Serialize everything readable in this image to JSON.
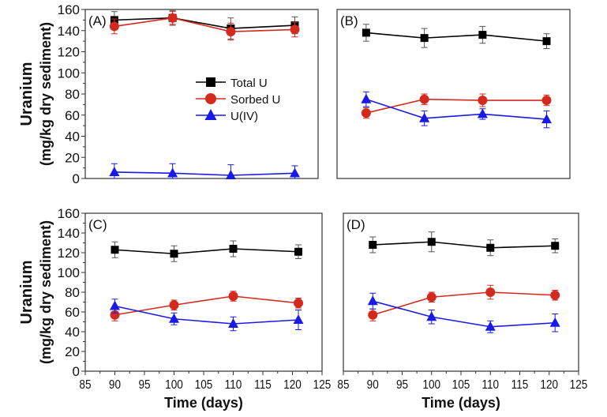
{
  "chart_data": [
    {
      "type": "line",
      "panel_label": "(A)",
      "x": [
        90,
        100,
        110,
        121
      ],
      "xlim": [
        85,
        125
      ],
      "ylim": [
        0,
        160
      ],
      "xticks": [],
      "yticks": [
        "0",
        "20",
        "40",
        "60",
        "80",
        "100",
        "120",
        "140",
        "160"
      ],
      "ylabel_line1": "Uranium",
      "ylabel_line2": "(mg/kg dry sediment)",
      "xlabel": "",
      "legend": {
        "placement": "center-right"
      },
      "series": [
        {
          "name": "Total U",
          "color": "#000000",
          "marker": "square",
          "values": [
            150,
            152,
            142,
            145
          ],
          "error": [
            8,
            7,
            10,
            8
          ]
        },
        {
          "name": "Sorbed U",
          "color": "#d42a1e",
          "marker": "circle",
          "values": [
            144,
            152,
            139,
            141
          ],
          "error": [
            7,
            6,
            8,
            7
          ]
        },
        {
          "name": "U(IV)",
          "color": "#1a1ae6",
          "marker": "triangle",
          "values": [
            6,
            5,
            3,
            5
          ],
          "error": [
            8,
            9,
            10,
            7
          ]
        }
      ]
    },
    {
      "type": "line",
      "panel_label": "(B)",
      "x": [
        90,
        100,
        110,
        121
      ],
      "xlim": [
        85,
        125
      ],
      "ylim": [
        0,
        160
      ],
      "xticks": [],
      "yticks": [],
      "xlabel": "",
      "series": [
        {
          "color": "#000000",
          "marker": "square",
          "values": [
            138,
            133,
            136,
            130
          ],
          "error": [
            8,
            9,
            8,
            7
          ]
        },
        {
          "color": "#d42a1e",
          "marker": "circle",
          "values": [
            62,
            75,
            74,
            74
          ],
          "error": [
            5,
            5,
            6,
            5
          ]
        },
        {
          "color": "#1a1ae6",
          "marker": "triangle",
          "values": [
            75,
            57,
            61,
            56
          ],
          "error": [
            7,
            7,
            5,
            8
          ]
        }
      ]
    },
    {
      "type": "line",
      "panel_label": "(C)",
      "x": [
        90,
        100,
        110,
        121
      ],
      "xlim": [
        85,
        125
      ],
      "ylim": [
        0,
        160
      ],
      "xticks": [
        "85",
        "90",
        "95",
        "100",
        "105",
        "110",
        "115",
        "120",
        "125"
      ],
      "yticks": [
        "0",
        "20",
        "40",
        "60",
        "80",
        "100",
        "120",
        "140",
        "160"
      ],
      "ylabel_line1": "Uranium",
      "ylabel_line2": "(mg/kg dry sediment)",
      "xlabel": "Time (days)",
      "series": [
        {
          "color": "#000000",
          "marker": "square",
          "values": [
            123,
            119,
            124,
            121
          ],
          "error": [
            8,
            8,
            8,
            7
          ]
        },
        {
          "color": "#d42a1e",
          "marker": "circle",
          "values": [
            57,
            67,
            76,
            69
          ],
          "error": [
            6,
            5,
            5,
            5
          ]
        },
        {
          "color": "#1a1ae6",
          "marker": "triangle",
          "values": [
            66,
            53,
            48,
            52
          ],
          "error": [
            7,
            6,
            7,
            10
          ]
        }
      ]
    },
    {
      "type": "line",
      "panel_label": "(D)",
      "x": [
        90,
        100,
        110,
        121
      ],
      "xlim": [
        85,
        125
      ],
      "ylim": [
        0,
        160
      ],
      "xticks": [
        "85",
        "90",
        "95",
        "100",
        "105",
        "110",
        "115",
        "120",
        "125"
      ],
      "yticks": [],
      "xlabel": "Time (days)",
      "series": [
        {
          "color": "#000000",
          "marker": "square",
          "values": [
            128,
            131,
            125,
            127
          ],
          "error": [
            8,
            10,
            8,
            7
          ]
        },
        {
          "color": "#d42a1e",
          "marker": "circle",
          "values": [
            57,
            75,
            80,
            77
          ],
          "error": [
            6,
            5,
            7,
            5
          ]
        },
        {
          "color": "#1a1ae6",
          "marker": "triangle",
          "values": [
            71,
            55,
            45,
            49
          ],
          "error": [
            8,
            7,
            6,
            9
          ]
        }
      ]
    }
  ]
}
